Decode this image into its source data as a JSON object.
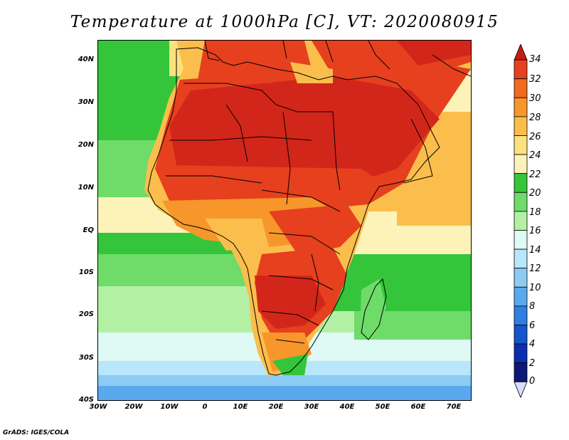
{
  "title": "Temperature at 1000hPa [C], VT: 2020080915",
  "credit": "GrADS: IGES/COLA",
  "map": {
    "lat_labels": [
      "40N",
      "30N",
      "20N",
      "10N",
      "EQ",
      "10S",
      "20S",
      "30S",
      "40S"
    ],
    "lon_labels": [
      "30W",
      "20W",
      "10W",
      "0",
      "10E",
      "20E",
      "30E",
      "40E",
      "50E",
      "60E",
      "70E"
    ],
    "lat_range": [
      -40,
      45
    ],
    "lon_range": [
      -30,
      75
    ]
  },
  "colorbar": {
    "labels": [
      "34",
      "32",
      "30",
      "28",
      "26",
      "24",
      "22",
      "20",
      "18",
      "16",
      "14",
      "12",
      "10",
      "8",
      "6",
      "4",
      "2",
      "0"
    ],
    "levels_desc": [
      {
        "value": 34,
        "color": "#d3261a"
      },
      {
        "value": 32,
        "color": "#e6401e"
      },
      {
        "value": 30,
        "color": "#f26a1f"
      },
      {
        "value": 28,
        "color": "#f7962b"
      },
      {
        "value": 26,
        "color": "#fbbe4c"
      },
      {
        "value": 24,
        "color": "#fde17e"
      },
      {
        "value": 22,
        "color": "#fdf3b9"
      },
      {
        "value": 20,
        "color": "#35c53a"
      },
      {
        "value": 18,
        "color": "#6fdc6a"
      },
      {
        "value": 16,
        "color": "#b3f0a4"
      },
      {
        "value": 14,
        "color": "#dff9f4"
      },
      {
        "value": 12,
        "color": "#b8e6fb"
      },
      {
        "value": 10,
        "color": "#8ccbf4"
      },
      {
        "value": 8,
        "color": "#5aa9ee"
      },
      {
        "value": 6,
        "color": "#2f80e0"
      },
      {
        "value": 4,
        "color": "#1556cc"
      },
      {
        "value": 2,
        "color": "#0a2fae"
      },
      {
        "value": 0,
        "color": "#0b1a74"
      }
    ],
    "top_triangle_color": "#c61a12",
    "bottom_triangle_color": "#d9dcff"
  }
}
